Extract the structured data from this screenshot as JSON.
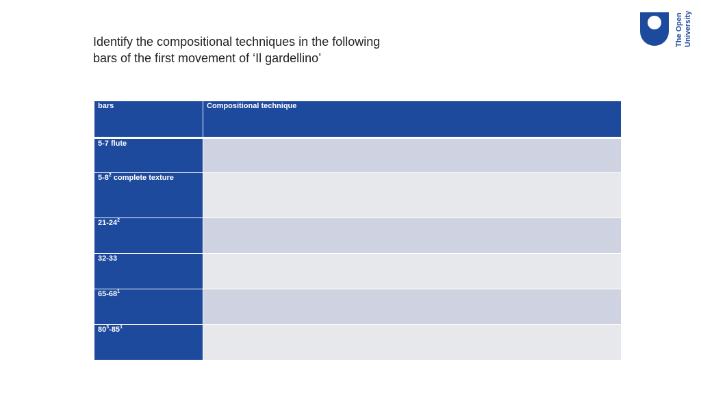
{
  "heading": {
    "line1": "Identify the compositional techniques in the following",
    "line2": "bars of the first movement of ‘Il gardellino’"
  },
  "logo": {
    "text_line1": "The Open",
    "text_line2": "University",
    "color": "#1e4a9e"
  },
  "table": {
    "headers": [
      "bars",
      "Compositional technique"
    ],
    "rows": [
      {
        "label": "5-7 flute",
        "sup": "",
        "suffix": "",
        "value": ""
      },
      {
        "label": "5-8",
        "sup": "2",
        "suffix": " complete texture",
        "value": ""
      },
      {
        "label": "21-24",
        "sup": "2",
        "suffix": "",
        "value": ""
      },
      {
        "label": "32-33",
        "sup": "",
        "suffix": "",
        "value": ""
      },
      {
        "label": "65-68",
        "sup": "1",
        "suffix": "",
        "value": ""
      },
      {
        "label": "80",
        "sup": "3",
        "suffix": "-85",
        "sup2": "1",
        "value": ""
      }
    ]
  },
  "colors": {
    "header_blue": "#1e4a9e",
    "row_dark": "#cfd2e0",
    "row_light": "#e7e8ec"
  }
}
